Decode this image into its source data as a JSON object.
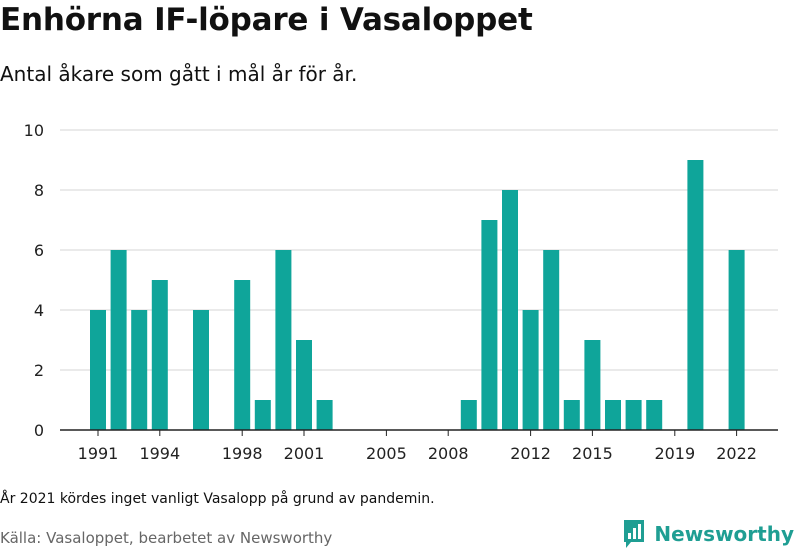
{
  "header": {
    "title": "Enhörna IF-löpare i Vasaloppet",
    "subtitle": "Antal åkare som gått i mål år för år."
  },
  "footer": {
    "note": "År 2021 kördes inget vanligt Vasalopp på grund av pandemin.",
    "source": "Källa: Vasaloppet, bearbetet av Newsworthy",
    "brand": "Newsworthy",
    "brand_icon": "newsworthy-logo-icon"
  },
  "colors": {
    "bar": "#0fa59a",
    "grid": "#d6d6d6",
    "brand": "#1f9e93"
  },
  "chart_data": {
    "type": "bar",
    "title": "Enhörna IF-löpare i Vasaloppet",
    "subtitle": "Antal åkare som gått i mål år för år.",
    "xlabel": "",
    "ylabel": "",
    "ylim": [
      0,
      10
    ],
    "yticks": [
      0,
      2,
      4,
      6,
      8,
      10
    ],
    "xticks": [
      "1991",
      "1994",
      "1998",
      "2001",
      "2005",
      "2008",
      "2012",
      "2015",
      "2019",
      "2022"
    ],
    "grid": true,
    "categories": [
      1991,
      1992,
      1993,
      1994,
      1995,
      1996,
      1997,
      1998,
      1999,
      2000,
      2001,
      2002,
      2003,
      2004,
      2005,
      2006,
      2007,
      2008,
      2009,
      2010,
      2011,
      2012,
      2013,
      2014,
      2015,
      2016,
      2017,
      2018,
      2019,
      2020,
      2021,
      2022
    ],
    "values": [
      4,
      6,
      4,
      5,
      0,
      4,
      0,
      5,
      1,
      6,
      3,
      1,
      0,
      0,
      0,
      0,
      0,
      0,
      1,
      7,
      8,
      4,
      6,
      1,
      3,
      1,
      1,
      1,
      0,
      9,
      0,
      6
    ]
  }
}
